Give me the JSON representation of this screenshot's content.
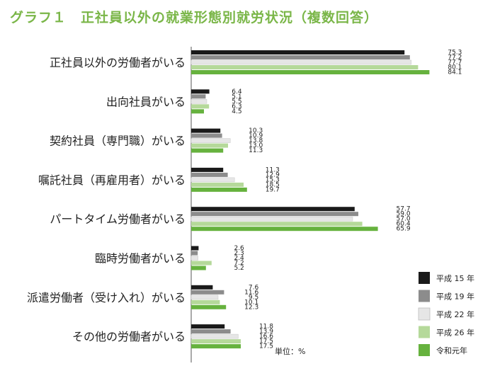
{
  "chart_data": {
    "type": "bar",
    "orientation": "horizontal",
    "title": "グラフ１　正社員以外の就業形態別就労状況（複数回答）",
    "unit": "単位：%",
    "categories": [
      "正社員以外の労働者がいる",
      "出向社員がいる",
      "契約社員（専門職）がいる",
      "嘱託社員（再雇用者）がいる",
      "パートタイム労働者がいる",
      "臨時労働者がいる",
      "派遣労働者（受け入れ）がいる",
      "その他の労働者がいる"
    ],
    "series": [
      {
        "name": "平成 15 年",
        "color": "#1a1a1a",
        "values": [
          75.3,
          6.4,
          10.3,
          11.3,
          57.7,
          2.6,
          7.6,
          11.8
        ]
      },
      {
        "name": "平成 19 年",
        "color": "#8c8c8c",
        "values": [
          77.2,
          5.1,
          10.9,
          12.9,
          59.0,
          2.3,
          11.6,
          13.9
        ]
      },
      {
        "name": "平成 22 年",
        "color": "#e6e6e6",
        "values": [
          77.7,
          5.5,
          13.8,
          15.3,
          57.0,
          2.4,
          9.5,
          16.6
        ]
      },
      {
        "name": "平成 26 年",
        "color": "#b5d99a",
        "values": [
          80.1,
          6.3,
          13.0,
          18.5,
          60.4,
          7.2,
          10.1,
          17.5
        ]
      },
      {
        "name": "令和元年",
        "color": "#66b23e",
        "values": [
          84.1,
          4.5,
          11.3,
          19.7,
          65.9,
          5.2,
          12.3,
          17.5
        ]
      }
    ],
    "value_labels": [
      [
        "75.3",
        "77.2",
        "77.7",
        "80.1",
        "84.1"
      ],
      [
        "6.4",
        "5.1",
        "5.5",
        "6.3",
        "4.5"
      ],
      [
        "10.3",
        "10.9",
        "13.8",
        "13.0",
        "11.3"
      ],
      [
        "11.3",
        "12.9",
        "15.3",
        "18.5",
        "19.7"
      ],
      [
        "57.7",
        "59.0",
        "57.0",
        "60.4",
        "65.9"
      ],
      [
        "2.6",
        "2.3",
        "2.4",
        "7.2",
        "5.2"
      ],
      [
        "7.6",
        "11.6",
        "9.5",
        "10.1",
        "12.3"
      ],
      [
        "11.8",
        "13.9",
        "16.6",
        "17.5",
        "17.5"
      ]
    ],
    "xlim": [
      0,
      100
    ],
    "grid": false,
    "legend_position": "bottom-right"
  }
}
